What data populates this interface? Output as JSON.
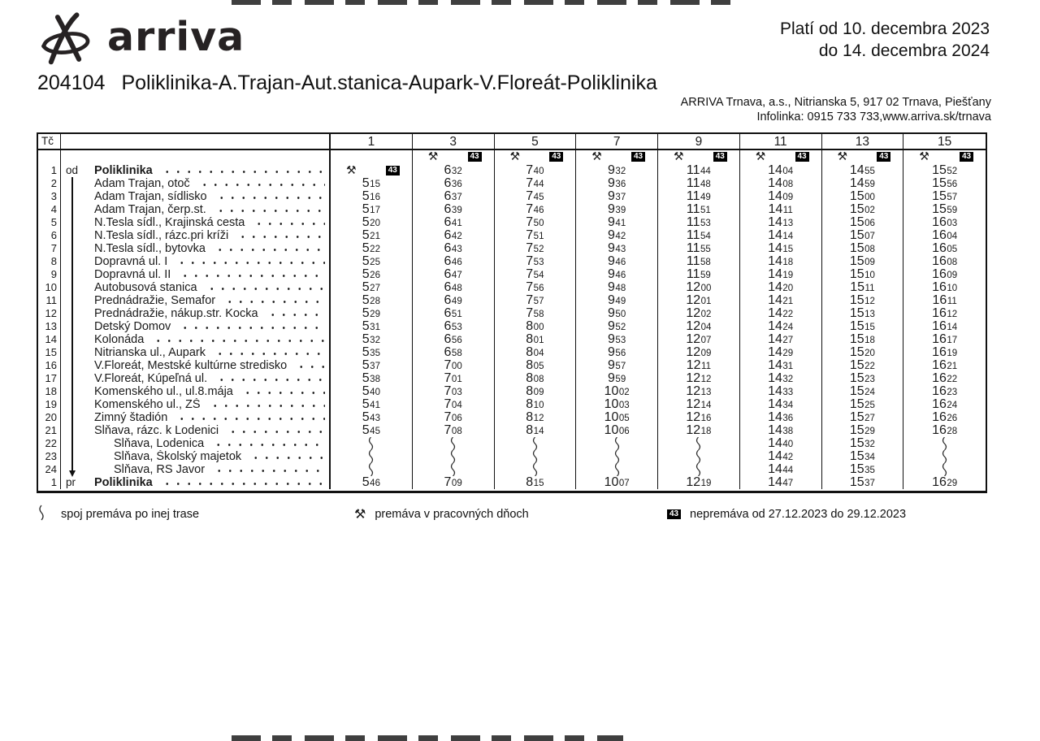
{
  "header": {
    "logo_text": "arriva",
    "validity_line1": "Platí od 10. decembra 2023",
    "validity_line2": "do 14. decembra 2024",
    "line_number": "204104",
    "route_title": "Poliklinika-A.Trajan-Aut.stanica-Aupark-V.Floreát-Poliklinika",
    "operator_line1": "ARRIVA Trnava, a.s., Nitrianska 5, 917 02 Trnava, Piešťany",
    "operator_line2": "Infolinka: 0915 733 733,www.arriva.sk/trnava"
  },
  "table": {
    "tc_header": "Tč",
    "column_headers": [
      "1",
      "3",
      "5",
      "7",
      "9",
      "11",
      "13",
      "15"
    ],
    "workdays_symbol": "⚒",
    "note_badge": "43",
    "symbol_row": [
      "",
      "SYM",
      "SYM",
      "SYM",
      "SYM",
      "SYM",
      "SYM",
      "SYM"
    ],
    "rows": [
      {
        "tc": "1",
        "odpr": "od",
        "stop": "Poliklinika",
        "bold": true,
        "times": [
          "SYM",
          "632",
          "740",
          "932",
          "1144",
          "1404",
          "1455",
          "1552"
        ]
      },
      {
        "tc": "2",
        "odpr": "",
        "stop": "Adam Trajan, otoč",
        "times": [
          "515",
          "636",
          "744",
          "936",
          "1148",
          "1408",
          "1459",
          "1556"
        ]
      },
      {
        "tc": "3",
        "odpr": "",
        "stop": "Adam Trajan, sídlisko",
        "times": [
          "516",
          "637",
          "745",
          "937",
          "1149",
          "1409",
          "1500",
          "1557"
        ]
      },
      {
        "tc": "4",
        "odpr": "",
        "stop": "Adam Trajan, čerp.st.",
        "times": [
          "517",
          "639",
          "746",
          "939",
          "1151",
          "1411",
          "1502",
          "1559"
        ]
      },
      {
        "tc": "5",
        "odpr": "",
        "stop": "N.Tesla sídl., Krajinská cesta",
        "times": [
          "520",
          "641",
          "750",
          "941",
          "1153",
          "1413",
          "1506",
          "1603"
        ]
      },
      {
        "tc": "6",
        "odpr": "",
        "stop": "N.Tesla sídl., rázc.pri kríži",
        "times": [
          "521",
          "642",
          "751",
          "942",
          "1154",
          "1414",
          "1507",
          "1604"
        ]
      },
      {
        "tc": "7",
        "odpr": "",
        "stop": "N.Tesla sídl., bytovka",
        "times": [
          "522",
          "643",
          "752",
          "943",
          "1155",
          "1415",
          "1508",
          "1605"
        ]
      },
      {
        "tc": "8",
        "odpr": "",
        "stop": "Dopravná ul. I",
        "times": [
          "525",
          "646",
          "753",
          "946",
          "1158",
          "1418",
          "1509",
          "1608"
        ]
      },
      {
        "tc": "9",
        "odpr": "",
        "stop": "Dopravná ul. II",
        "times": [
          "526",
          "647",
          "754",
          "946",
          "1159",
          "1419",
          "1510",
          "1609"
        ]
      },
      {
        "tc": "10",
        "odpr": "",
        "stop": "Autobusová stanica",
        "times": [
          "527",
          "648",
          "756",
          "948",
          "1200",
          "1420",
          "1511",
          "1610"
        ]
      },
      {
        "tc": "11",
        "odpr": "",
        "stop": "Prednádražie, Semafor",
        "times": [
          "528",
          "649",
          "757",
          "949",
          "1201",
          "1421",
          "1512",
          "1611"
        ]
      },
      {
        "tc": "12",
        "odpr": "",
        "stop": "Prednádražie, nákup.str. Kocka",
        "times": [
          "529",
          "651",
          "758",
          "950",
          "1202",
          "1422",
          "1513",
          "1612"
        ]
      },
      {
        "tc": "13",
        "odpr": "",
        "stop": "Detský Domov",
        "times": [
          "531",
          "653",
          "800",
          "952",
          "1204",
          "1424",
          "1515",
          "1614"
        ]
      },
      {
        "tc": "14",
        "odpr": "",
        "stop": "Kolonáda",
        "times": [
          "532",
          "656",
          "801",
          "953",
          "1207",
          "1427",
          "1518",
          "1617"
        ]
      },
      {
        "tc": "15",
        "odpr": "",
        "stop": "Nitrianska ul., Aupark",
        "times": [
          "535",
          "658",
          "804",
          "956",
          "1209",
          "1429",
          "1520",
          "1619"
        ]
      },
      {
        "tc": "16",
        "odpr": "",
        "stop": "V.Floreát, Mestské kultúrne stredisko",
        "times": [
          "537",
          "700",
          "805",
          "957",
          "1211",
          "1431",
          "1522",
          "1621"
        ]
      },
      {
        "tc": "17",
        "odpr": "",
        "stop": "V.Floreát, Kúpeľná ul.",
        "times": [
          "538",
          "701",
          "808",
          "959",
          "1212",
          "1432",
          "1523",
          "1622"
        ]
      },
      {
        "tc": "18",
        "odpr": "",
        "stop": "Komenského ul., ul.8.mája",
        "times": [
          "540",
          "703",
          "809",
          "1002",
          "1213",
          "1433",
          "1524",
          "1623"
        ]
      },
      {
        "tc": "19",
        "odpr": "",
        "stop": "Komenského ul., ZŠ",
        "times": [
          "541",
          "704",
          "810",
          "1003",
          "1214",
          "1434",
          "1525",
          "1624"
        ]
      },
      {
        "tc": "20",
        "odpr": "",
        "stop": "Zimný štadión",
        "times": [
          "543",
          "706",
          "812",
          "1005",
          "1216",
          "1436",
          "1527",
          "1626"
        ]
      },
      {
        "tc": "21",
        "odpr": "",
        "stop": "Sĺňava, rázc. k Lodenici",
        "times": [
          "545",
          "708",
          "814",
          "1006",
          "1218",
          "1438",
          "1529",
          "1628"
        ]
      },
      {
        "tc": "22",
        "odpr": "",
        "stop": "Sĺňava, Lodenica",
        "indent": true,
        "times": [
          "~",
          "~",
          "~",
          "~",
          "~",
          "1440",
          "1532",
          "~"
        ]
      },
      {
        "tc": "23",
        "odpr": "",
        "stop": "Sĺňava, Školský majetok",
        "indent": true,
        "times": [
          "~",
          "~",
          "~",
          "~",
          "~",
          "1442",
          "1534",
          "~"
        ]
      },
      {
        "tc": "24",
        "odpr": "",
        "stop": "Sĺňava, RS Javor",
        "indent": true,
        "times": [
          "~",
          "~",
          "~",
          "~",
          "~",
          "1444",
          "1535",
          "~"
        ]
      },
      {
        "tc": "1",
        "odpr": "pr",
        "stop": "Poliklinika",
        "bold": true,
        "times": [
          "546",
          "709",
          "815",
          "1007",
          "1219",
          "1447",
          "1537",
          "1629"
        ]
      }
    ]
  },
  "legend": [
    {
      "key": "alt-route",
      "label": "spoj premáva po inej trase"
    },
    {
      "key": "workdays",
      "label": "premáva v pracovných dňoch"
    },
    {
      "key": "note-43",
      "label": "nepremáva od 27.12.2023 do 29.12.2023"
    }
  ],
  "colors": {
    "ink": "#1a1a1a",
    "badge_bg": "#000000",
    "badge_fg": "#ffffff"
  }
}
